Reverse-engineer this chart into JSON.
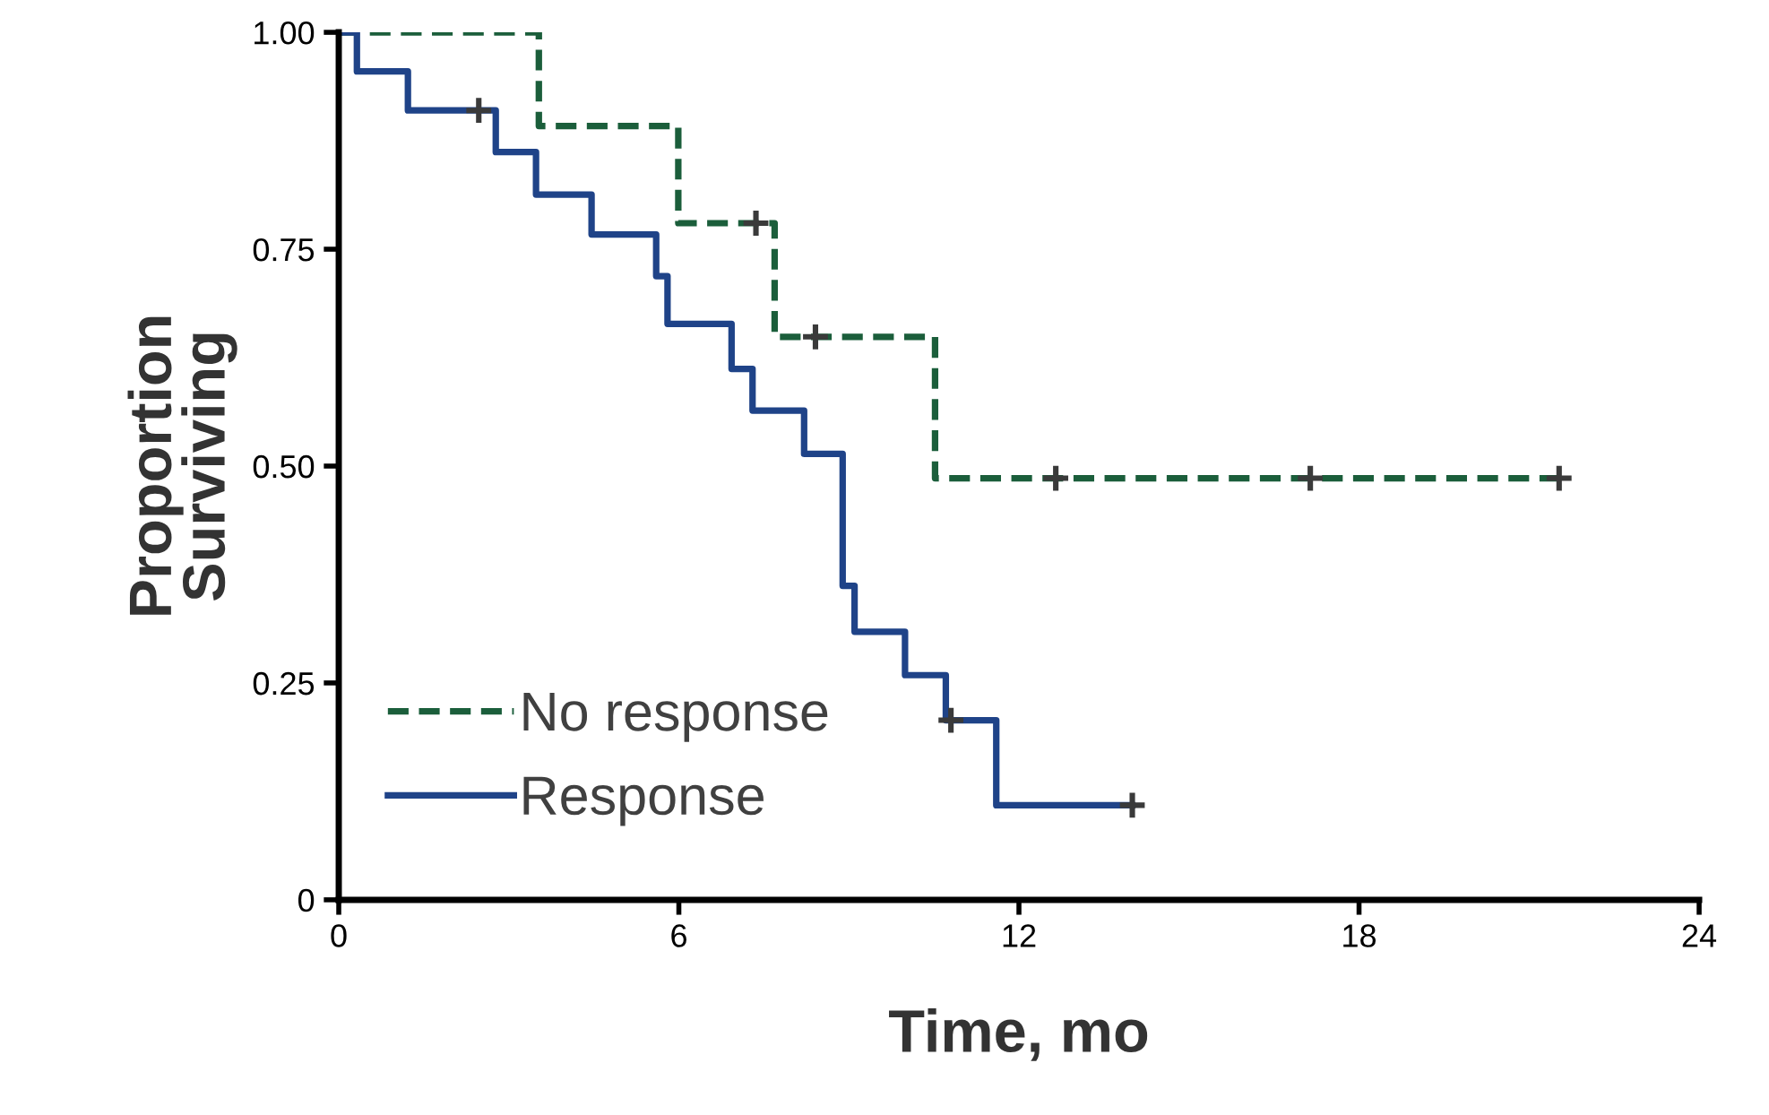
{
  "chart_data": {
    "type": "step",
    "xlabel": "Time, mo",
    "ylabel": "Proportion\nSurviving",
    "xlim": [
      0,
      24
    ],
    "xticks": [
      0,
      6,
      12,
      18,
      24
    ],
    "ylim": [
      0,
      1
    ],
    "yticks": [
      0,
      0.25,
      {
        "value": 0.5,
        "label": "0.50"
      },
      {
        "value": 0.75,
        "label": "0.75"
      },
      {
        "value": 1,
        "label": "1.00"
      }
    ],
    "grid": false,
    "legend": "bottom left",
    "series": [
      {
        "name": "No response",
        "color": "#1b5e3b",
        "line_style": "dashed",
        "x": [
          0,
          3.53,
          5.99,
          7.69,
          10.52,
          21.53
        ],
        "values": [
          1.0,
          0.892,
          0.78,
          0.649,
          0.486,
          0.486
        ]
      },
      {
        "name": "Response",
        "color": "#1f4388",
        "line_style": "solid",
        "x": [
          0,
          0.32,
          1.22,
          2.77,
          3.48,
          4.46,
          5.6,
          5.8,
          6.93,
          7.3,
          8.21,
          8.89,
          9.1,
          9.99,
          10.71,
          11.6,
          14.0
        ],
        "values": [
          1.0,
          0.955,
          0.91,
          0.862,
          0.813,
          0.767,
          0.719,
          0.664,
          0.612,
          0.564,
          0.514,
          0.362,
          0.309,
          0.259,
          0.207,
          0.109,
          0.109
        ]
      },
      {
        "type": "scatter",
        "marker": "cross",
        "color": "#3a3a3a",
        "x": [
          7.36,
          8.41,
          12.65,
          17.14,
          21.53
        ],
        "values": [
          0.78,
          0.649,
          0.486,
          0.486,
          0.486
        ]
      },
      {
        "type": "scatter",
        "marker": "cross",
        "color": "#3a3a3a",
        "x": [
          2.47,
          10.8,
          14.0
        ],
        "values": [
          0.91,
          0.207,
          0.109
        ]
      }
    ]
  }
}
